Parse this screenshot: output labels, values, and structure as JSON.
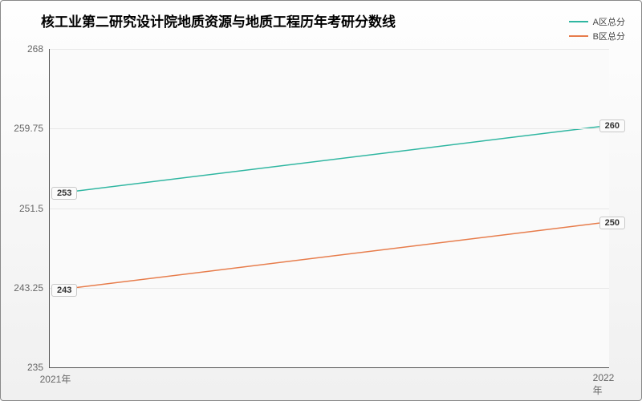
{
  "chart": {
    "type": "line",
    "title": "核工业第二研究设计院地质资源与地质工程历年考研分数线",
    "title_fontsize": 17,
    "background_top": "#fefefe",
    "background_bottom": "#f0f0f0",
    "plot_background": "#fafafa",
    "axis_color": "#555555",
    "grid_color": "#e8e8e8",
    "x_categories": [
      "2021年",
      "2022年"
    ],
    "y_min": 235,
    "y_max": 268,
    "y_ticks": [
      235,
      243.25,
      251.5,
      259.75,
      268
    ],
    "y_tick_labels": [
      "235",
      "243.25",
      "251.5",
      "259.75",
      "268"
    ],
    "tick_fontsize": 12,
    "label_fontsize": 11,
    "series": [
      {
        "name": "A区总分",
        "color": "#2fb6a1",
        "line_width": 1.5,
        "values": [
          253,
          260
        ]
      },
      {
        "name": "B区总分",
        "color": "#e77c4b",
        "line_width": 1.5,
        "values": [
          243,
          250
        ]
      }
    ],
    "legend_position": "top-right"
  }
}
